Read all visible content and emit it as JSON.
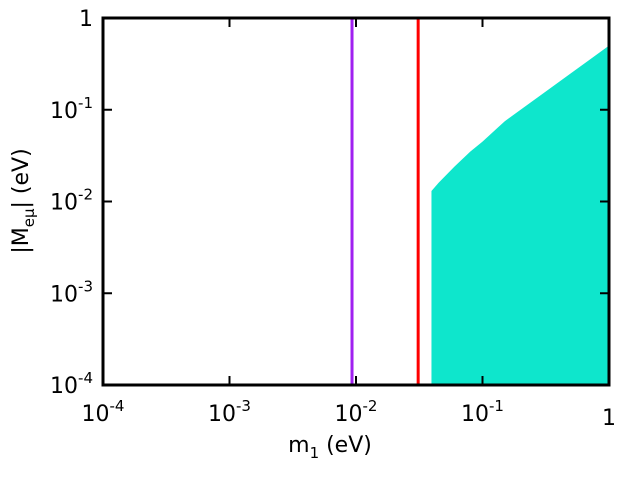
{
  "chart_data": {
    "type": "scatter",
    "title": "",
    "xlabel": {
      "base": "m",
      "sub": "1",
      "suffix": " (eV)"
    },
    "ylabel": {
      "prefix": "|M",
      "sub": "eμ",
      "suffix": "| (eV)"
    },
    "x_scale": "log",
    "y_scale": "log",
    "xlim": [
      0.0001,
      1
    ],
    "ylim": [
      0.0001,
      1
    ],
    "grid": false,
    "x_ticks": [
      {
        "value": 0.0001,
        "base": "10",
        "exp": "-4"
      },
      {
        "value": 0.001,
        "base": "10",
        "exp": "-3"
      },
      {
        "value": 0.01,
        "base": "10",
        "exp": "-2"
      },
      {
        "value": 0.1,
        "base": "10",
        "exp": "-1"
      },
      {
        "value": 1,
        "base": "1",
        "exp": ""
      }
    ],
    "y_ticks": [
      {
        "value": 0.0001,
        "base": "10",
        "exp": "-4"
      },
      {
        "value": 0.001,
        "base": "10",
        "exp": "-3"
      },
      {
        "value": 0.01,
        "base": "10",
        "exp": "-2"
      },
      {
        "value": 0.1,
        "base": "10",
        "exp": "-1"
      },
      {
        "value": 1,
        "base": "1",
        "exp": ""
      }
    ],
    "vertical_lines": [
      {
        "x": 0.0093,
        "color": "#a020f0"
      },
      {
        "x": 0.031,
        "color": "#ff0000"
      }
    ],
    "allowed_region": {
      "color": "#0ee6cc",
      "upper_boundary": [
        {
          "x": 0.0395,
          "y": 0.013
        },
        {
          "x": 0.045,
          "y": 0.016
        },
        {
          "x": 0.06,
          "y": 0.024
        },
        {
          "x": 0.08,
          "y": 0.035
        },
        {
          "x": 0.1,
          "y": 0.045
        },
        {
          "x": 0.15,
          "y": 0.075
        },
        {
          "x": 0.2,
          "y": 0.1
        },
        {
          "x": 0.3,
          "y": 0.15
        },
        {
          "x": 0.5,
          "y": 0.25
        },
        {
          "x": 0.7,
          "y": 0.35
        },
        {
          "x": 1.0,
          "y": 0.5
        }
      ],
      "lower_y": 0.0001,
      "left_x": 0.0395,
      "right_x": 1.0
    }
  }
}
